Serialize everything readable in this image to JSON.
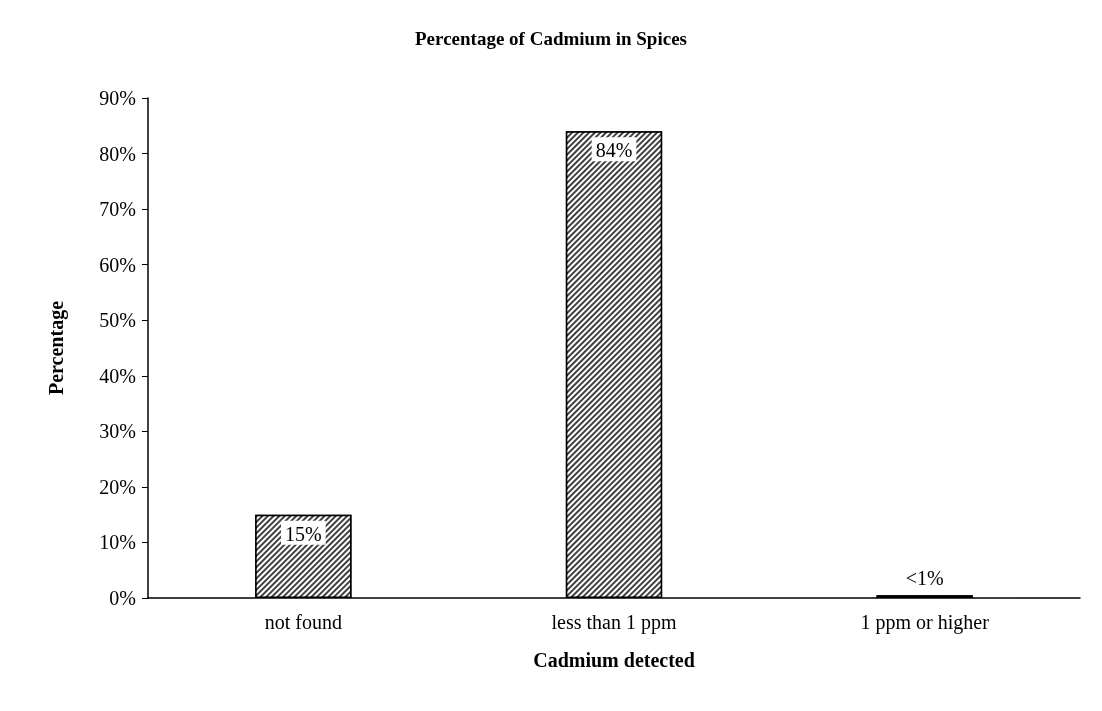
{
  "chart_data": {
    "type": "bar",
    "title": "Percentage of Cadmium in Spices",
    "xlabel": "Cadmium detected",
    "ylabel": "Percentage",
    "categories": [
      "not found",
      "less than 1 ppm",
      "1 ppm or higher"
    ],
    "values": [
      15,
      84,
      0.5
    ],
    "value_labels": [
      "15%",
      "84%",
      "<1%"
    ],
    "color": "#404040",
    "ylim": [
      0,
      90
    ],
    "yticks": [
      {
        "value": 0,
        "label": "0%"
      },
      {
        "value": 10,
        "label": "10%"
      },
      {
        "value": 20,
        "label": "20%"
      },
      {
        "value": 30,
        "label": "30%"
      },
      {
        "value": 40,
        "label": "40%"
      },
      {
        "value": 50,
        "label": "50%"
      },
      {
        "value": 60,
        "label": "60%"
      },
      {
        "value": 70,
        "label": "70%"
      },
      {
        "value": 80,
        "label": "80%"
      },
      {
        "value": 90,
        "label": "90%"
      }
    ],
    "grid": false
  }
}
